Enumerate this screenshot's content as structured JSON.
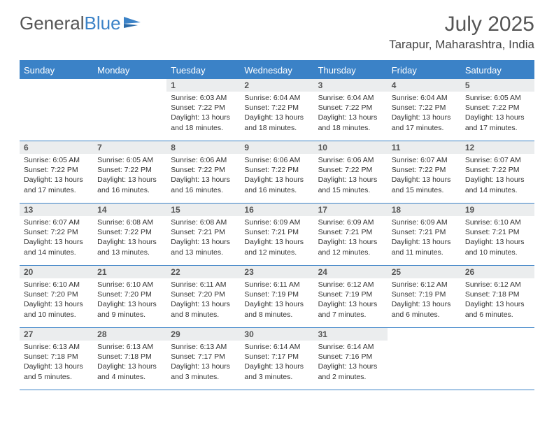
{
  "logo": {
    "text1": "General",
    "text2": "Blue"
  },
  "title": "July 2025",
  "location": "Tarapur, Maharashtra, India",
  "colors": {
    "header_bg": "#3b82c7",
    "daynum_bg": "#ebedee",
    "border": "#3b82c7",
    "text": "#333333"
  },
  "day_names": [
    "Sunday",
    "Monday",
    "Tuesday",
    "Wednesday",
    "Thursday",
    "Friday",
    "Saturday"
  ],
  "weeks": [
    [
      {
        "n": "",
        "sr": "",
        "ss": "",
        "dl": ""
      },
      {
        "n": "",
        "sr": "",
        "ss": "",
        "dl": ""
      },
      {
        "n": "1",
        "sr": "Sunrise: 6:03 AM",
        "ss": "Sunset: 7:22 PM",
        "dl": "Daylight: 13 hours and 18 minutes."
      },
      {
        "n": "2",
        "sr": "Sunrise: 6:04 AM",
        "ss": "Sunset: 7:22 PM",
        "dl": "Daylight: 13 hours and 18 minutes."
      },
      {
        "n": "3",
        "sr": "Sunrise: 6:04 AM",
        "ss": "Sunset: 7:22 PM",
        "dl": "Daylight: 13 hours and 18 minutes."
      },
      {
        "n": "4",
        "sr": "Sunrise: 6:04 AM",
        "ss": "Sunset: 7:22 PM",
        "dl": "Daylight: 13 hours and 17 minutes."
      },
      {
        "n": "5",
        "sr": "Sunrise: 6:05 AM",
        "ss": "Sunset: 7:22 PM",
        "dl": "Daylight: 13 hours and 17 minutes."
      }
    ],
    [
      {
        "n": "6",
        "sr": "Sunrise: 6:05 AM",
        "ss": "Sunset: 7:22 PM",
        "dl": "Daylight: 13 hours and 17 minutes."
      },
      {
        "n": "7",
        "sr": "Sunrise: 6:05 AM",
        "ss": "Sunset: 7:22 PM",
        "dl": "Daylight: 13 hours and 16 minutes."
      },
      {
        "n": "8",
        "sr": "Sunrise: 6:06 AM",
        "ss": "Sunset: 7:22 PM",
        "dl": "Daylight: 13 hours and 16 minutes."
      },
      {
        "n": "9",
        "sr": "Sunrise: 6:06 AM",
        "ss": "Sunset: 7:22 PM",
        "dl": "Daylight: 13 hours and 16 minutes."
      },
      {
        "n": "10",
        "sr": "Sunrise: 6:06 AM",
        "ss": "Sunset: 7:22 PM",
        "dl": "Daylight: 13 hours and 15 minutes."
      },
      {
        "n": "11",
        "sr": "Sunrise: 6:07 AM",
        "ss": "Sunset: 7:22 PM",
        "dl": "Daylight: 13 hours and 15 minutes."
      },
      {
        "n": "12",
        "sr": "Sunrise: 6:07 AM",
        "ss": "Sunset: 7:22 PM",
        "dl": "Daylight: 13 hours and 14 minutes."
      }
    ],
    [
      {
        "n": "13",
        "sr": "Sunrise: 6:07 AM",
        "ss": "Sunset: 7:22 PM",
        "dl": "Daylight: 13 hours and 14 minutes."
      },
      {
        "n": "14",
        "sr": "Sunrise: 6:08 AM",
        "ss": "Sunset: 7:22 PM",
        "dl": "Daylight: 13 hours and 13 minutes."
      },
      {
        "n": "15",
        "sr": "Sunrise: 6:08 AM",
        "ss": "Sunset: 7:21 PM",
        "dl": "Daylight: 13 hours and 13 minutes."
      },
      {
        "n": "16",
        "sr": "Sunrise: 6:09 AM",
        "ss": "Sunset: 7:21 PM",
        "dl": "Daylight: 13 hours and 12 minutes."
      },
      {
        "n": "17",
        "sr": "Sunrise: 6:09 AM",
        "ss": "Sunset: 7:21 PM",
        "dl": "Daylight: 13 hours and 12 minutes."
      },
      {
        "n": "18",
        "sr": "Sunrise: 6:09 AM",
        "ss": "Sunset: 7:21 PM",
        "dl": "Daylight: 13 hours and 11 minutes."
      },
      {
        "n": "19",
        "sr": "Sunrise: 6:10 AM",
        "ss": "Sunset: 7:21 PM",
        "dl": "Daylight: 13 hours and 10 minutes."
      }
    ],
    [
      {
        "n": "20",
        "sr": "Sunrise: 6:10 AM",
        "ss": "Sunset: 7:20 PM",
        "dl": "Daylight: 13 hours and 10 minutes."
      },
      {
        "n": "21",
        "sr": "Sunrise: 6:10 AM",
        "ss": "Sunset: 7:20 PM",
        "dl": "Daylight: 13 hours and 9 minutes."
      },
      {
        "n": "22",
        "sr": "Sunrise: 6:11 AM",
        "ss": "Sunset: 7:20 PM",
        "dl": "Daylight: 13 hours and 8 minutes."
      },
      {
        "n": "23",
        "sr": "Sunrise: 6:11 AM",
        "ss": "Sunset: 7:19 PM",
        "dl": "Daylight: 13 hours and 8 minutes."
      },
      {
        "n": "24",
        "sr": "Sunrise: 6:12 AM",
        "ss": "Sunset: 7:19 PM",
        "dl": "Daylight: 13 hours and 7 minutes."
      },
      {
        "n": "25",
        "sr": "Sunrise: 6:12 AM",
        "ss": "Sunset: 7:19 PM",
        "dl": "Daylight: 13 hours and 6 minutes."
      },
      {
        "n": "26",
        "sr": "Sunrise: 6:12 AM",
        "ss": "Sunset: 7:18 PM",
        "dl": "Daylight: 13 hours and 6 minutes."
      }
    ],
    [
      {
        "n": "27",
        "sr": "Sunrise: 6:13 AM",
        "ss": "Sunset: 7:18 PM",
        "dl": "Daylight: 13 hours and 5 minutes."
      },
      {
        "n": "28",
        "sr": "Sunrise: 6:13 AM",
        "ss": "Sunset: 7:18 PM",
        "dl": "Daylight: 13 hours and 4 minutes."
      },
      {
        "n": "29",
        "sr": "Sunrise: 6:13 AM",
        "ss": "Sunset: 7:17 PM",
        "dl": "Daylight: 13 hours and 3 minutes."
      },
      {
        "n": "30",
        "sr": "Sunrise: 6:14 AM",
        "ss": "Sunset: 7:17 PM",
        "dl": "Daylight: 13 hours and 3 minutes."
      },
      {
        "n": "31",
        "sr": "Sunrise: 6:14 AM",
        "ss": "Sunset: 7:16 PM",
        "dl": "Daylight: 13 hours and 2 minutes."
      },
      {
        "n": "",
        "sr": "",
        "ss": "",
        "dl": ""
      },
      {
        "n": "",
        "sr": "",
        "ss": "",
        "dl": ""
      }
    ]
  ]
}
